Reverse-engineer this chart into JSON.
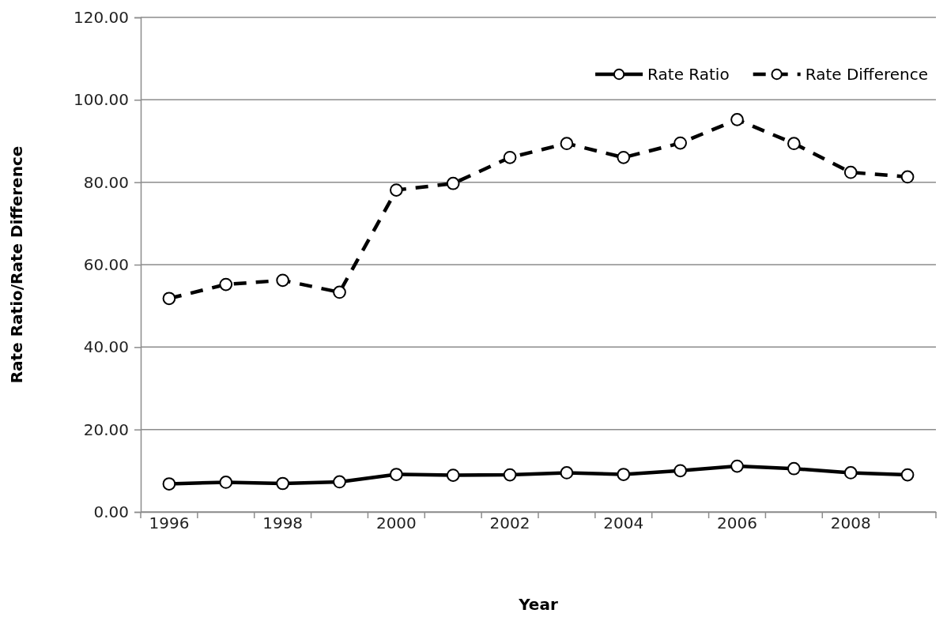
{
  "chart_data": {
    "type": "line",
    "xlabel": "Year",
    "ylabel": "Rate Ratio/Rate Difference",
    "categories": [
      "1996",
      null,
      "1998",
      null,
      "2000",
      null,
      "2002",
      null,
      "2004",
      null,
      "2006",
      null,
      "2008",
      null
    ],
    "series": [
      {
        "name": "Rate Ratio",
        "color": "#000000",
        "line_style": "solid",
        "values": [
          6.8,
          7.2,
          6.9,
          7.3,
          9.1,
          8.9,
          9.0,
          9.5,
          9.1,
          10.0,
          11.1,
          10.5,
          9.5,
          9.0
        ]
      },
      {
        "name": "Rate Difference",
        "color": "#000000",
        "line_style": "dashed",
        "values": [
          51.8,
          55.2,
          56.2,
          53.3,
          78.1,
          79.7,
          86.0,
          89.4,
          86.0,
          89.5,
          95.2,
          89.4,
          82.4,
          81.3
        ]
      }
    ],
    "ylim": [
      0,
      120
    ],
    "yticks": [
      {
        "value": 0,
        "label": "0.00"
      },
      {
        "value": 20,
        "label": "20.00"
      },
      {
        "value": 40,
        "label": "40.00"
      },
      {
        "value": 60,
        "label": "60.00"
      },
      {
        "value": 80,
        "label": "80.00"
      },
      {
        "value": 100,
        "label": "100.00"
      },
      {
        "value": 120,
        "label": "120.00"
      }
    ],
    "grid": "y",
    "legend": "top right",
    "marker": "circle"
  }
}
